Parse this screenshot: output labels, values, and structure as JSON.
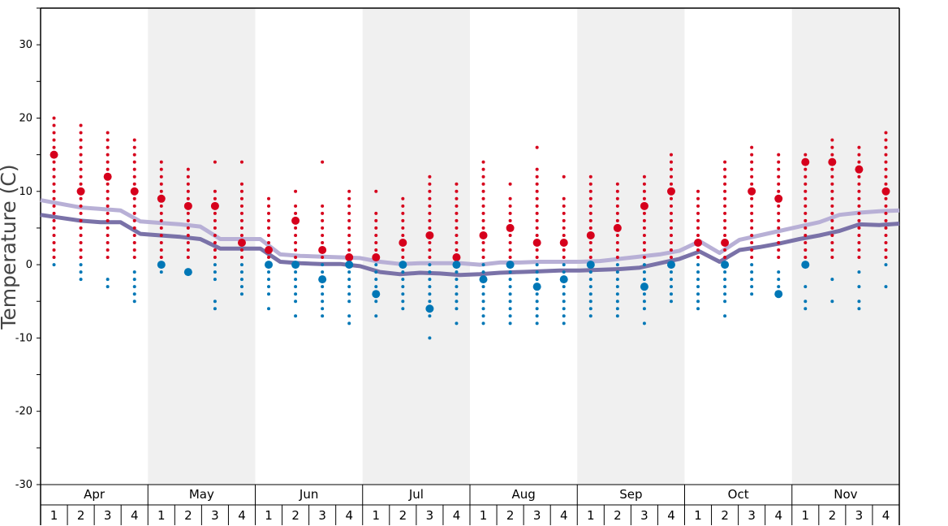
{
  "chart_data": {
    "type": "scatter",
    "ylabel": "Temperature (C)",
    "ylim": [
      -30,
      35
    ],
    "yticks": [
      30,
      20,
      10,
      0,
      -10,
      -20,
      -30
    ],
    "months": [
      "Apr",
      "May",
      "Jun",
      "Jul",
      "Aug",
      "Sep",
      "Oct",
      "Nov"
    ],
    "weeks": [
      "1",
      "2",
      "3",
      "4"
    ],
    "colors": {
      "max_dots": "#d6001c",
      "min_dots": "#0077b6",
      "line_upper": "#b8b0d6",
      "line_lower": "#7a72a8",
      "band": "#f0f0f0"
    },
    "lines": [
      {
        "values": [
          8.8,
          8.3,
          7.8,
          7.6,
          7.4,
          5.9,
          5.7,
          5.5,
          5.2,
          3.5,
          3.5,
          3.5,
          1.4,
          1.2,
          1.1,
          1.0,
          0.9,
          0.4,
          0.1,
          0.2,
          0.2,
          0.2,
          0.0,
          0.3,
          0.3,
          0.4,
          0.4,
          0.4,
          0.5,
          0.8,
          1.1,
          1.4,
          1.9,
          3.2,
          1.6,
          3.4,
          4.0,
          4.6,
          5.2,
          5.8,
          6.8,
          7.1,
          7.3,
          7.4
        ]
      },
      {
        "values": [
          6.8,
          6.4,
          6.0,
          5.8,
          5.8,
          4.2,
          4.0,
          3.8,
          3.5,
          2.2,
          2.2,
          2.2,
          0.4,
          0.2,
          0.1,
          0.1,
          -0.2,
          -1.0,
          -1.3,
          -1.1,
          -1.2,
          -1.4,
          -1.3,
          -1.1,
          -1.0,
          -0.9,
          -0.8,
          -0.8,
          -0.7,
          -0.6,
          -0.4,
          0.2,
          0.8,
          1.8,
          0.4,
          2.0,
          2.4,
          2.9,
          3.5,
          4.0,
          4.6,
          5.5,
          5.4,
          5.6
        ]
      }
    ],
    "max_temps": [
      {
        "values": [
          1,
          2,
          3,
          4,
          5,
          6,
          7,
          8,
          9,
          10,
          11,
          12,
          13,
          14,
          15,
          16,
          17,
          18,
          19,
          20
        ],
        "common": 15
      },
      {
        "values": [
          1,
          2,
          3,
          4,
          5,
          6,
          7,
          8,
          9,
          10,
          11,
          12,
          13,
          14,
          15,
          16,
          17,
          18,
          19
        ],
        "common": 10
      },
      {
        "values": [
          1,
          2,
          3,
          4,
          5,
          6,
          7,
          8,
          9,
          10,
          11,
          12,
          13,
          14,
          15,
          16,
          17,
          18
        ],
        "common": 12
      },
      {
        "values": [
          1,
          2,
          3,
          4,
          5,
          6,
          7,
          8,
          9,
          10,
          11,
          12,
          13,
          14,
          15,
          16,
          17
        ],
        "common": 10
      },
      {
        "values": [
          1,
          2,
          3,
          4,
          5,
          6,
          7,
          8,
          9,
          10,
          11,
          12,
          13,
          14
        ],
        "common": 9
      },
      {
        "values": [
          1,
          2,
          3,
          4,
          5,
          6,
          7,
          8,
          9,
          10,
          11,
          12,
          13
        ],
        "common": 8
      },
      {
        "values": [
          1,
          2,
          3,
          4,
          5,
          6,
          7,
          8,
          9,
          10,
          14
        ],
        "common": 8
      },
      {
        "values": [
          1,
          2,
          3,
          4,
          5,
          6,
          7,
          8,
          9,
          10,
          11,
          14
        ],
        "common": 3
      },
      {
        "values": [
          1,
          2,
          3,
          4,
          5,
          6,
          7,
          8,
          9
        ],
        "common": 2
      },
      {
        "values": [
          1,
          2,
          3,
          4,
          5,
          6,
          7,
          8,
          10
        ],
        "common": 6
      },
      {
        "values": [
          1,
          2,
          3,
          4,
          5,
          6,
          7,
          8,
          14
        ],
        "common": 2
      },
      {
        "values": [
          1,
          2,
          3,
          4,
          5,
          6,
          7,
          8,
          9,
          10
        ],
        "common": 1
      },
      {
        "values": [
          1,
          2,
          3,
          4,
          5,
          6,
          7,
          10
        ],
        "common": 1
      },
      {
        "values": [
          1,
          2,
          3,
          4,
          5,
          6,
          7,
          8,
          9
        ],
        "common": 3
      },
      {
        "values": [
          1,
          2,
          3,
          4,
          5,
          6,
          7,
          8,
          9,
          10,
          11,
          12
        ],
        "common": 4
      },
      {
        "values": [
          1,
          2,
          3,
          4,
          5,
          6,
          7,
          8,
          9,
          10,
          11
        ],
        "common": 1
      },
      {
        "values": [
          1,
          2,
          3,
          4,
          5,
          6,
          7,
          8,
          9,
          10,
          11,
          12,
          13,
          14
        ],
        "common": 4
      },
      {
        "values": [
          1,
          2,
          3,
          4,
          5,
          6,
          7,
          8,
          9,
          11
        ],
        "common": 5
      },
      {
        "values": [
          1,
          2,
          3,
          4,
          5,
          6,
          7,
          8,
          9,
          10,
          11,
          12,
          13,
          16
        ],
        "common": 3
      },
      {
        "values": [
          1,
          2,
          3,
          4,
          5,
          6,
          7,
          8,
          9,
          12
        ],
        "common": 3
      },
      {
        "values": [
          1,
          2,
          3,
          4,
          5,
          6,
          7,
          8,
          9,
          10,
          11,
          12
        ],
        "common": 4
      },
      {
        "values": [
          1,
          2,
          3,
          4,
          5,
          6,
          7,
          8,
          9,
          10,
          11
        ],
        "common": 5
      },
      {
        "values": [
          1,
          2,
          3,
          4,
          5,
          6,
          7,
          8,
          9,
          10,
          11,
          12
        ],
        "common": 8
      },
      {
        "values": [
          1,
          2,
          3,
          4,
          5,
          6,
          7,
          8,
          9,
          10,
          11,
          12,
          13,
          14,
          15
        ],
        "common": 10
      },
      {
        "values": [
          1,
          2,
          3,
          4,
          5,
          6,
          7,
          8,
          9,
          10
        ],
        "common": 3
      },
      {
        "values": [
          1,
          2,
          3,
          4,
          5,
          6,
          7,
          8,
          9,
          10,
          11,
          12,
          13,
          14
        ],
        "common": 3
      },
      {
        "values": [
          1,
          2,
          3,
          4,
          5,
          6,
          7,
          8,
          9,
          10,
          11,
          12,
          13,
          14,
          15,
          16
        ],
        "common": 10
      },
      {
        "values": [
          1,
          2,
          3,
          4,
          5,
          6,
          7,
          8,
          9,
          10,
          11,
          12,
          13,
          14,
          15
        ],
        "common": 9
      },
      {
        "values": [
          1,
          2,
          3,
          4,
          5,
          6,
          7,
          8,
          9,
          10,
          11,
          12,
          13,
          14,
          15
        ],
        "common": 14
      },
      {
        "values": [
          1,
          2,
          3,
          4,
          5,
          6,
          7,
          8,
          9,
          10,
          11,
          12,
          13,
          14,
          15,
          16,
          17
        ],
        "common": 14
      },
      {
        "values": [
          1,
          2,
          3,
          4,
          5,
          6,
          7,
          8,
          9,
          10,
          11,
          12,
          13,
          14,
          15,
          16
        ],
        "common": 13
      },
      {
        "values": [
          1,
          2,
          3,
          4,
          5,
          6,
          7,
          8,
          9,
          10,
          11,
          12,
          13,
          14,
          15,
          16,
          17,
          18
        ],
        "common": 10
      }
    ],
    "min_temps": [
      {
        "values": [
          0
        ],
        "common": null
      },
      {
        "values": [
          0,
          -1,
          -2
        ],
        "common": null
      },
      {
        "values": [
          -2,
          -3
        ],
        "common": null
      },
      {
        "values": [
          -1,
          -2,
          -3,
          -4,
          -5
        ],
        "common": null
      },
      {
        "values": [
          0,
          -1
        ],
        "common": 0
      },
      {
        "values": [
          -1
        ],
        "common": -1
      },
      {
        "values": [
          0,
          -1,
          -2,
          -5,
          -6
        ],
        "common": null
      },
      {
        "values": [
          0,
          -1,
          -2,
          -3,
          -4
        ],
        "common": null
      },
      {
        "values": [
          0,
          -1,
          -2,
          -3,
          -4,
          -6
        ],
        "common": 0
      },
      {
        "values": [
          0,
          -1,
          -2,
          -3,
          -4,
          -5,
          -7
        ],
        "common": 0
      },
      {
        "values": [
          0,
          -1,
          -2,
          -3,
          -4,
          -5,
          -6,
          -7
        ],
        "common": -2
      },
      {
        "values": [
          0,
          -1,
          -2,
          -3,
          -4,
          -5,
          -7,
          -8
        ],
        "common": 0
      },
      {
        "values": [
          0,
          -1,
          -2,
          -3,
          -4,
          -5,
          -7
        ],
        "common": -4
      },
      {
        "values": [
          0,
          -1,
          -2,
          -3,
          -4,
          -5,
          -6
        ],
        "common": 0
      },
      {
        "values": [
          0,
          -1,
          -2,
          -3,
          -4,
          -5,
          -6,
          -7,
          -10
        ],
        "common": -6
      },
      {
        "values": [
          0,
          -1,
          -2,
          -3,
          -4,
          -5,
          -6,
          -8
        ],
        "common": 0
      },
      {
        "values": [
          0,
          -1,
          -2,
          -3,
          -4,
          -5,
          -6,
          -7,
          -8
        ],
        "common": -2
      },
      {
        "values": [
          0,
          -1,
          -2,
          -3,
          -4,
          -5,
          -6,
          -7,
          -8
        ],
        "common": 0
      },
      {
        "values": [
          0,
          -1,
          -2,
          -3,
          -4,
          -5,
          -6,
          -7,
          -8
        ],
        "common": -3
      },
      {
        "values": [
          0,
          -1,
          -2,
          -3,
          -4,
          -5,
          -6,
          -7,
          -8
        ],
        "common": -2
      },
      {
        "values": [
          0,
          -1,
          -2,
          -3,
          -4,
          -5,
          -6,
          -7
        ],
        "common": 0
      },
      {
        "values": [
          0,
          -1,
          -2,
          -3,
          -4,
          -5,
          -6,
          -7
        ],
        "common": null
      },
      {
        "values": [
          0,
          -1,
          -2,
          -3,
          -4,
          -5,
          -6,
          -8
        ],
        "common": -3
      },
      {
        "values": [
          0,
          -1,
          -2,
          -3,
          -4,
          -5
        ],
        "common": 0
      },
      {
        "values": [
          0,
          -1,
          -2,
          -3,
          -4,
          -5,
          -6
        ],
        "common": null
      },
      {
        "values": [
          0,
          -1,
          -2,
          -3,
          -4,
          -5,
          -7
        ],
        "common": 0
      },
      {
        "values": [
          0,
          -1,
          -2,
          -3,
          -4
        ],
        "common": null
      },
      {
        "values": [
          -1,
          -2,
          -3,
          -4
        ],
        "common": -4
      },
      {
        "values": [
          0,
          -3,
          -5,
          -6
        ],
        "common": 0
      },
      {
        "values": [
          -2,
          -5
        ],
        "common": null
      },
      {
        "values": [
          -1,
          -3,
          -5,
          -6
        ],
        "common": null
      },
      {
        "values": [
          0,
          -3
        ],
        "common": null
      }
    ]
  }
}
